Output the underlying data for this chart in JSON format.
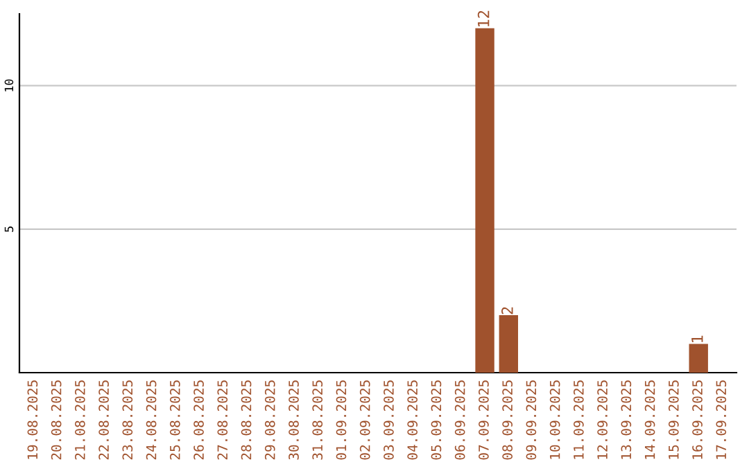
{
  "chart_data": {
    "type": "bar",
    "categories": [
      "19.08.2025",
      "20.08.2025",
      "21.08.2025",
      "22.08.2025",
      "23.08.2025",
      "24.08.2025",
      "25.08.2025",
      "26.08.2025",
      "27.08.2025",
      "28.08.2025",
      "29.08.2025",
      "30.08.2025",
      "31.08.2025",
      "01.09.2025",
      "02.09.2025",
      "03.09.2025",
      "04.09.2025",
      "05.09.2025",
      "06.09.2025",
      "07.09.2025",
      "08.09.2025",
      "09.09.2025",
      "10.09.2025",
      "11.09.2025",
      "12.09.2025",
      "13.09.2025",
      "14.09.2025",
      "15.09.2025",
      "16.09.2025",
      "17.09.2025"
    ],
    "values": [
      0,
      0,
      0,
      0,
      0,
      0,
      0,
      0,
      0,
      0,
      0,
      0,
      0,
      0,
      0,
      0,
      0,
      0,
      0,
      12,
      2,
      0,
      0,
      0,
      0,
      0,
      0,
      0,
      1,
      0
    ],
    "value_labels": [
      null,
      null,
      null,
      null,
      null,
      null,
      null,
      null,
      null,
      null,
      null,
      null,
      null,
      null,
      null,
      null,
      null,
      null,
      null,
      "12",
      "2",
      null,
      null,
      null,
      null,
      null,
      null,
      null,
      "1",
      null
    ],
    "color": "#a0522d",
    "ylim": [
      0,
      12.5
    ],
    "yticks": [
      5,
      10
    ],
    "grid": "y",
    "legend": false
  }
}
